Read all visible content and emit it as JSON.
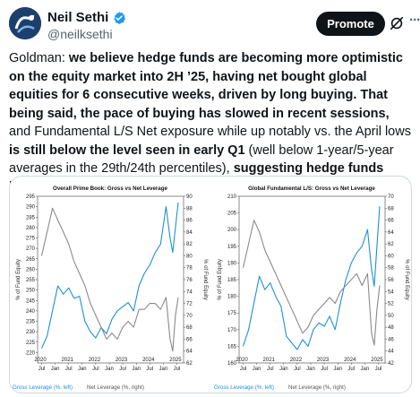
{
  "header": {
    "display_name": "Neil Sethi",
    "handle": "@neilksethi",
    "promote_label": "Promote",
    "more_label": "···"
  },
  "tweet": {
    "segments": [
      {
        "text": "Goldman: ",
        "bold": false
      },
      {
        "text": "we believe hedge funds are becoming more optimistic on the equity market into 2H ’25, having net bought global equities for 6 consecutive weeks, driven by long buying. That being said, the pace of buying has slowed in recent sessions,",
        "bold": true
      },
      {
        "text": " and Fundamental L/S Net exposure while up notably vs. the April lows ",
        "bold": false
      },
      {
        "text": "is still below the level seen in early Q1",
        "bold": true
      },
      {
        "text": " (well below 1-year/5-year averages in the 29th/24th percentiles), ",
        "bold": false
      },
      {
        "text": "suggesting hedge funds have not gone “all in”.",
        "bold": true
      }
    ]
  },
  "colors": {
    "gross": "#1f8fd6",
    "net": "#8a8a8a",
    "accent": "#1d9bf0"
  },
  "chart_data": [
    {
      "type": "line",
      "title": "Overall Prime Book: Gross vs Net Leverage",
      "ylabel_left": "% of Fund Equity",
      "ylabel_right": "% of Fund Equity",
      "ylim_left": [
        215,
        295
      ],
      "yticks_left": [
        220,
        225,
        230,
        235,
        240,
        245,
        250,
        255,
        260,
        265,
        270,
        275,
        280,
        285,
        290,
        295
      ],
      "ylim_right": [
        62,
        90
      ],
      "yticks_right": [
        62,
        64,
        66,
        68,
        70,
        72,
        74,
        76,
        78,
        80,
        82,
        84,
        86,
        88,
        90
      ],
      "year_labels": [
        "2020",
        "2021",
        "2022",
        "2023",
        "2024",
        "2025"
      ],
      "month_labels": [
        "Jul",
        "Jan",
        "Jul",
        "Jan",
        "Jul",
        "Jan",
        "Jul",
        "Jan",
        "Jul",
        "Jan",
        "Jul"
      ],
      "legend": [
        "Gross Leverage (%, left)",
        "Net Leverage (%, right)"
      ],
      "series": [
        {
          "name": "Gross Leverage (%, left)",
          "axis": "left",
          "x": [
            2020.5,
            2020.7,
            2020.9,
            2021.1,
            2021.3,
            2021.5,
            2021.7,
            2021.9,
            2022.1,
            2022.3,
            2022.5,
            2022.7,
            2022.9,
            2023.1,
            2023.3,
            2023.5,
            2023.7,
            2023.9,
            2024.1,
            2024.3,
            2024.5,
            2024.7,
            2024.9,
            2025.1,
            2025.25,
            2025.35,
            2025.45,
            2025.55
          ],
          "values": [
            222,
            228,
            240,
            252,
            248,
            251,
            246,
            247,
            235,
            230,
            227,
            232,
            229,
            236,
            240,
            242,
            244,
            240,
            252,
            258,
            262,
            268,
            272,
            290,
            275,
            268,
            280,
            292
          ]
        },
        {
          "name": "Net Leverage (%, right)",
          "axis": "right",
          "x": [
            2020.5,
            2020.7,
            2020.9,
            2021.1,
            2021.3,
            2021.5,
            2021.7,
            2021.9,
            2022.1,
            2022.3,
            2022.5,
            2022.7,
            2022.9,
            2023.1,
            2023.3,
            2023.5,
            2023.7,
            2023.9,
            2024.1,
            2024.3,
            2024.5,
            2024.7,
            2024.9,
            2025.1,
            2025.25,
            2025.35,
            2025.45,
            2025.55
          ],
          "values": [
            80,
            84,
            88,
            86,
            84,
            82,
            79,
            77,
            75,
            72,
            70,
            68,
            66,
            67,
            66,
            68,
            69,
            68,
            71,
            71,
            72,
            72,
            71,
            73,
            66,
            64,
            70,
            73
          ]
        }
      ]
    },
    {
      "type": "line",
      "title": "Global Fundamental L/S: Gross vs Net Leverage",
      "ylabel_left": "% of Fund Equity",
      "ylabel_right": "% of Fund Equity",
      "ylim_left": [
        160,
        210
      ],
      "yticks_left": [
        160,
        165,
        170,
        175,
        180,
        185,
        190,
        195,
        200,
        205,
        210
      ],
      "ylim_right": [
        42,
        70
      ],
      "yticks_right": [
        42,
        44,
        46,
        48,
        50,
        52,
        54,
        56,
        58,
        60,
        62,
        64,
        66,
        68,
        70
      ],
      "year_labels": [
        "2020",
        "2021",
        "2022",
        "2023",
        "2024",
        "2025"
      ],
      "month_labels": [
        "Jul",
        "Jan",
        "Jul",
        "Jan",
        "Jul",
        "Jan",
        "Jul",
        "Jan",
        "Jul",
        "Jan",
        "Jul"
      ],
      "legend": [
        "Gross Leverage (%, left)",
        "Net Leverage (%, right)"
      ],
      "series": [
        {
          "name": "Gross Leverage (%, left)",
          "axis": "left",
          "x": [
            2020.5,
            2020.7,
            2020.9,
            2021.1,
            2021.3,
            2021.5,
            2021.7,
            2021.9,
            2022.1,
            2022.3,
            2022.5,
            2022.7,
            2022.9,
            2023.1,
            2023.3,
            2023.5,
            2023.7,
            2023.9,
            2024.1,
            2024.3,
            2024.5,
            2024.7,
            2024.9,
            2025.1,
            2025.25,
            2025.35,
            2025.45,
            2025.55
          ],
          "values": [
            165,
            170,
            178,
            186,
            182,
            184,
            180,
            177,
            168,
            166,
            164,
            167,
            165,
            170,
            172,
            171,
            174,
            170,
            178,
            185,
            190,
            193,
            195,
            200,
            188,
            183,
            195,
            207
          ]
        },
        {
          "name": "Net Leverage (%, right)",
          "axis": "right",
          "x": [
            2020.5,
            2020.7,
            2020.9,
            2021.1,
            2021.3,
            2021.5,
            2021.7,
            2021.9,
            2022.1,
            2022.3,
            2022.5,
            2022.7,
            2022.9,
            2023.1,
            2023.3,
            2023.5,
            2023.7,
            2023.9,
            2024.1,
            2024.3,
            2024.5,
            2024.7,
            2024.9,
            2025.1,
            2025.25,
            2025.35,
            2025.45,
            2025.55
          ],
          "values": [
            58,
            62,
            66,
            64,
            61,
            59,
            57,
            55,
            53,
            51,
            49,
            47,
            48,
            50,
            51,
            52,
            53,
            52,
            54,
            55,
            56,
            57,
            55,
            57,
            47,
            45,
            51,
            55
          ]
        }
      ]
    }
  ]
}
